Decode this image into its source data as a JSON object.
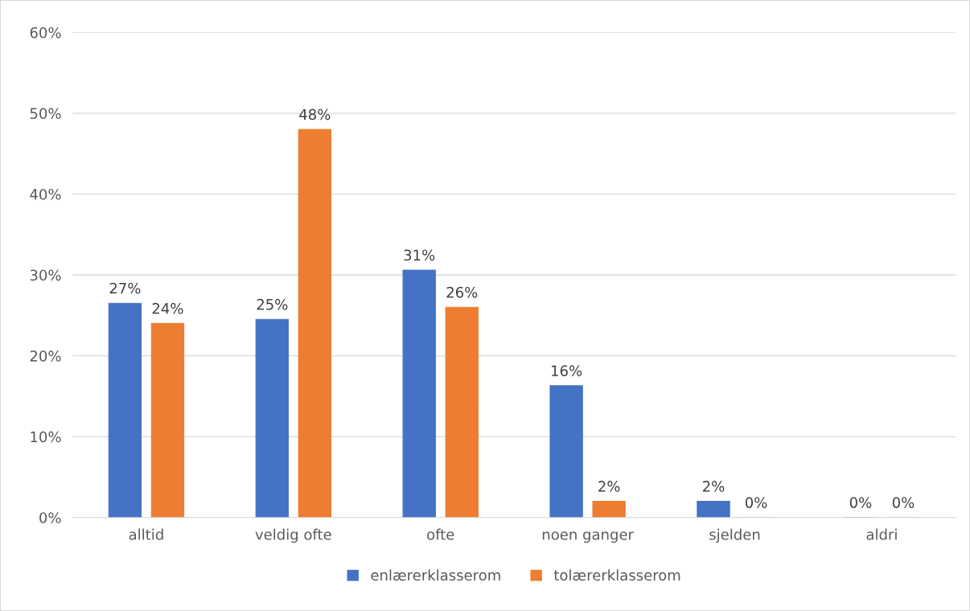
{
  "chart_data": {
    "type": "bar",
    "categories": [
      "alltid",
      "veldig ofte",
      "ofte",
      "noen ganger",
      "sjelden",
      "aldri"
    ],
    "series": [
      {
        "name": "enlærerklasserom",
        "color": "#4472c4",
        "values": [
          26.5,
          24.5,
          30.6,
          16.3,
          2.0,
          0
        ],
        "value_labels": [
          "27%",
          "25%",
          "31%",
          "16%",
          "2%",
          "0%"
        ]
      },
      {
        "name": "tolærerklasserom",
        "color": "#ed7d31",
        "values": [
          24.0,
          48.0,
          26.0,
          2.0,
          0,
          0
        ],
        "value_labels": [
          "24%",
          "48%",
          "26%",
          "2%",
          "0%",
          "0%"
        ]
      }
    ],
    "ylim": [
      0,
      60
    ],
    "yticks": [
      {
        "value": 0,
        "label": "0%"
      },
      {
        "value": 10,
        "label": "10%"
      },
      {
        "value": 20,
        "label": "20%"
      },
      {
        "value": 30,
        "label": "30%"
      },
      {
        "value": 40,
        "label": "40%"
      },
      {
        "value": 50,
        "label": "50%"
      },
      {
        "value": 60,
        "label": "60%"
      }
    ],
    "grid": "y",
    "legend": "bottom"
  }
}
